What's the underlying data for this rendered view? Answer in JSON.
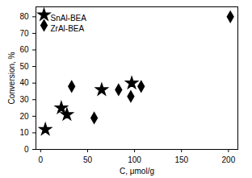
{
  "chart_data": {
    "type": "scatter",
    "x_label": "C, μmol/g",
    "y_label": "Conversion, %",
    "series": [
      {
        "name": "SnAl-BEA",
        "color": "#000000",
        "marker": "star",
        "x": [
          5,
          22,
          28,
          65,
          97
        ],
        "values": [
          12,
          25,
          21,
          36,
          40
        ]
      },
      {
        "name": "ZrAl-BEA",
        "color": "#000000",
        "marker": "diamond",
        "x": [
          33,
          57,
          83,
          96,
          107,
          202
        ],
        "values": [
          38,
          19,
          36,
          32,
          38,
          80
        ]
      }
    ],
    "xlim": [
      -5,
      210
    ],
    "xticks": [
      0,
      50,
      100,
      150,
      200
    ],
    "ylim": [
      0,
      86
    ],
    "yticks": [
      0,
      10,
      20,
      30,
      40,
      50,
      60,
      70,
      80
    ],
    "legend": "top-left",
    "grid": false
  }
}
